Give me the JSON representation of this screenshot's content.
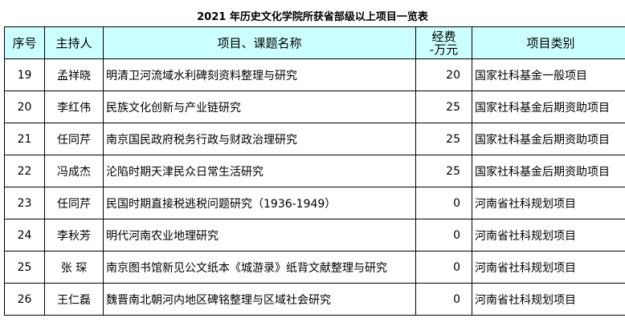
{
  "title": "2021 年历史文化学院所获省部级以上项目一览表",
  "headers": {
    "no": "序号",
    "host": "主持人",
    "name": "项目、课题名称",
    "fund_line1": "经费",
    "fund_line2": "-万元",
    "category": "项目类别"
  },
  "rows": [
    {
      "no": "19",
      "host": "孟祥晓",
      "name": "明清卫河流域水利碑刻资料整理与研究",
      "fund": "20",
      "category": "国家社科基金一般项目"
    },
    {
      "no": "20",
      "host": "李红伟",
      "name": "民族文化创新与产业链研究",
      "fund": "25",
      "category": "国家社科基金后期资助项目"
    },
    {
      "no": "21",
      "host": "任同芹",
      "name": "南京国民政府税务行政与财政治理研究",
      "fund": "25",
      "category": "国家社科基金后期资助项目"
    },
    {
      "no": "22",
      "host": "冯成杰",
      "name": "沦陷时期天津民众日常生活研究",
      "fund": "25",
      "category": "国家社科基金后期资助项目"
    },
    {
      "no": "23",
      "host": "任同芹",
      "name": "民国时期直接税逃税问题研究（1936-1949）",
      "fund": "0",
      "category": "河南省社科规划项目"
    },
    {
      "no": "24",
      "host": "李秋芳",
      "name": "明代河南农业地理研究",
      "fund": "0",
      "category": "河南省社科规划项目"
    },
    {
      "no": "25",
      "host": "张  琛",
      "name": "南京图书馆新见公文纸本《城游录》纸背文献整理与研究",
      "fund": "0",
      "category": "河南省社科规划项目"
    },
    {
      "no": "26",
      "host": "王仁磊",
      "name": "魏晋南北朝河内地区碑铭整理与区域社会研究",
      "fund": "0",
      "category": "河南省社科规划项目"
    }
  ]
}
